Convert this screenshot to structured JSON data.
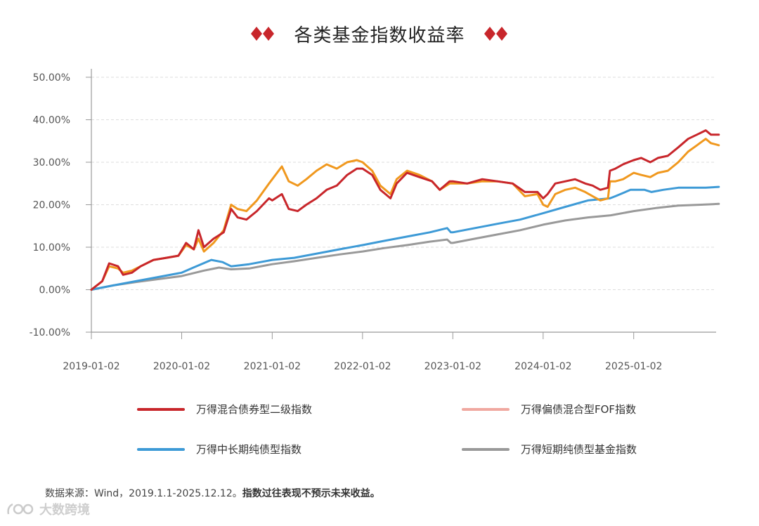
{
  "title": "各类基金指数收益率",
  "colors": {
    "diamond": "#c8262b",
    "axis": "#999999",
    "grid": "#dddddd",
    "tick_text": "#555555"
  },
  "chart_data": {
    "type": "line",
    "title": "各类基金指数收益率",
    "xlabel": "",
    "ylabel": "",
    "x_ticks": [
      "2019-01-02",
      "2020-01-02",
      "2021-01-02",
      "2022-01-02",
      "2023-01-02",
      "2024-01-02",
      "2025-01-02"
    ],
    "y_ticks": [
      "50.00%",
      "40.00%",
      "30.00%",
      "20.00%",
      "10.00%",
      "0.00%",
      "-10.00%"
    ],
    "ylim": [
      -10,
      50
    ],
    "x_range": [
      "2019-01-02",
      "2025-12-12"
    ],
    "grid": "horizontal dashed",
    "legend_position": "bottom",
    "series": [
      {
        "name": "万得混合债券型二级指数",
        "color": "#c8262b",
        "points": [
          [
            "2019-01-02",
            0
          ],
          [
            "2019-02-15",
            2
          ],
          [
            "2019-03-15",
            6.2
          ],
          [
            "2019-04-20",
            5.5
          ],
          [
            "2019-05-10",
            3.5
          ],
          [
            "2019-06-15",
            4
          ],
          [
            "2019-07-20",
            5.5
          ],
          [
            "2019-09-10",
            7
          ],
          [
            "2019-11-01",
            7.5
          ],
          [
            "2019-12-20",
            8
          ],
          [
            "2020-01-20",
            11
          ],
          [
            "2020-02-20",
            9.5
          ],
          [
            "2020-03-10",
            14
          ],
          [
            "2020-04-01",
            10
          ],
          [
            "2020-05-10",
            12
          ],
          [
            "2020-06-20",
            13.5
          ],
          [
            "2020-07-20",
            19
          ],
          [
            "2020-08-15",
            17
          ],
          [
            "2020-09-20",
            16.5
          ],
          [
            "2020-11-01",
            18.5
          ],
          [
            "2020-12-20",
            21.5
          ],
          [
            "2021-01-02",
            21
          ],
          [
            "2021-02-10",
            22.5
          ],
          [
            "2021-03-10",
            19
          ],
          [
            "2021-04-15",
            18.5
          ],
          [
            "2021-05-20",
            20
          ],
          [
            "2021-06-30",
            21.5
          ],
          [
            "2021-08-10",
            23.5
          ],
          [
            "2021-09-20",
            24.5
          ],
          [
            "2021-11-01",
            27
          ],
          [
            "2021-12-10",
            28.5
          ],
          [
            "2022-01-02",
            28.5
          ],
          [
            "2022-02-10",
            27
          ],
          [
            "2022-03-15",
            23.5
          ],
          [
            "2022-04-25",
            21.5
          ],
          [
            "2022-05-20",
            25
          ],
          [
            "2022-07-01",
            27.5
          ],
          [
            "2022-08-20",
            26.5
          ],
          [
            "2022-10-10",
            25.5
          ],
          [
            "2022-11-10",
            23.5
          ],
          [
            "2022-12-20",
            25.5
          ],
          [
            "2023-01-02",
            25.5
          ],
          [
            "2023-03-01",
            25
          ],
          [
            "2023-05-01",
            26
          ],
          [
            "2023-07-01",
            25.5
          ],
          [
            "2023-09-01",
            25
          ],
          [
            "2023-10-20",
            23
          ],
          [
            "2023-12-10",
            23
          ],
          [
            "2024-01-02",
            21.5
          ],
          [
            "2024-01-20",
            22.5
          ],
          [
            "2024-02-20",
            25
          ],
          [
            "2024-04-01",
            25.5
          ],
          [
            "2024-05-10",
            26
          ],
          [
            "2024-06-20",
            25
          ],
          [
            "2024-07-20",
            24.5
          ],
          [
            "2024-08-20",
            23.5
          ],
          [
            "2024-09-20",
            24
          ],
          [
            "2024-09-28",
            28
          ],
          [
            "2024-10-20",
            28.5
          ],
          [
            "2024-11-20",
            29.5
          ],
          [
            "2025-01-02",
            30.5
          ],
          [
            "2025-02-01",
            31
          ],
          [
            "2025-03-10",
            30
          ],
          [
            "2025-04-10",
            31
          ],
          [
            "2025-05-20",
            31.5
          ],
          [
            "2025-07-01",
            33.5
          ],
          [
            "2025-08-10",
            35.5
          ],
          [
            "2025-09-15",
            36.5
          ],
          [
            "2025-10-20",
            37.5
          ],
          [
            "2025-11-10",
            36.5
          ],
          [
            "2025-12-12",
            36.5
          ]
        ]
      },
      {
        "name": "万得偏债混合型FOF指数",
        "color": "#f0981e",
        "legend_color": "#f0a8a0",
        "points": [
          [
            "2019-01-02",
            0
          ],
          [
            "2019-02-15",
            2
          ],
          [
            "2019-03-15",
            5.5
          ],
          [
            "2019-04-20",
            5
          ],
          [
            "2019-05-10",
            4
          ],
          [
            "2019-06-15",
            4.5
          ],
          [
            "2019-07-20",
            5.5
          ],
          [
            "2019-09-10",
            7
          ],
          [
            "2019-11-01",
            7.5
          ],
          [
            "2019-12-20",
            8
          ],
          [
            "2020-01-20",
            10.5
          ],
          [
            "2020-02-20",
            9.5
          ],
          [
            "2020-03-10",
            12
          ],
          [
            "2020-04-01",
            9
          ],
          [
            "2020-05-10",
            11
          ],
          [
            "2020-06-20",
            14
          ],
          [
            "2020-07-20",
            20
          ],
          [
            "2020-08-15",
            19
          ],
          [
            "2020-09-20",
            18.5
          ],
          [
            "2020-11-01",
            21
          ],
          [
            "2020-12-20",
            25
          ],
          [
            "2021-01-02",
            26
          ],
          [
            "2021-02-10",
            29
          ],
          [
            "2021-03-10",
            25.5
          ],
          [
            "2021-04-15",
            24.5
          ],
          [
            "2021-05-20",
            26
          ],
          [
            "2021-06-30",
            28
          ],
          [
            "2021-08-10",
            29.5
          ],
          [
            "2021-09-20",
            28.5
          ],
          [
            "2021-11-01",
            30
          ],
          [
            "2021-12-10",
            30.5
          ],
          [
            "2022-01-02",
            30
          ],
          [
            "2022-02-10",
            28
          ],
          [
            "2022-03-15",
            24.5
          ],
          [
            "2022-04-25",
            22.5
          ],
          [
            "2022-05-20",
            26
          ],
          [
            "2022-07-01",
            28
          ],
          [
            "2022-08-20",
            27
          ],
          [
            "2022-10-10",
            25.5
          ],
          [
            "2022-11-10",
            23.5
          ],
          [
            "2022-12-20",
            25
          ],
          [
            "2023-01-02",
            25
          ],
          [
            "2023-03-01",
            25
          ],
          [
            "2023-05-01",
            25.5
          ],
          [
            "2023-07-01",
            25.5
          ],
          [
            "2023-09-01",
            25
          ],
          [
            "2023-10-20",
            22
          ],
          [
            "2023-12-10",
            22.5
          ],
          [
            "2024-01-02",
            20
          ],
          [
            "2024-01-20",
            19.5
          ],
          [
            "2024-02-20",
            22.5
          ],
          [
            "2024-04-01",
            23.5
          ],
          [
            "2024-05-10",
            24
          ],
          [
            "2024-06-20",
            23
          ],
          [
            "2024-07-20",
            22
          ],
          [
            "2024-08-20",
            21
          ],
          [
            "2024-09-20",
            21.5
          ],
          [
            "2024-09-28",
            25.5
          ],
          [
            "2024-10-20",
            25.5
          ],
          [
            "2024-11-20",
            26
          ],
          [
            "2025-01-02",
            27.5
          ],
          [
            "2025-02-01",
            27
          ],
          [
            "2025-03-10",
            26.5
          ],
          [
            "2025-04-10",
            27.5
          ],
          [
            "2025-05-20",
            28
          ],
          [
            "2025-07-01",
            30
          ],
          [
            "2025-08-10",
            32.5
          ],
          [
            "2025-09-15",
            34
          ],
          [
            "2025-10-20",
            35.5
          ],
          [
            "2025-11-10",
            34.5
          ],
          [
            "2025-12-12",
            34
          ]
        ]
      },
      {
        "name": "万得中长期纯债型指数",
        "color": "#3d9ad6",
        "points": [
          [
            "2019-01-02",
            0
          ],
          [
            "2019-04-01",
            1
          ],
          [
            "2019-07-01",
            2
          ],
          [
            "2019-10-01",
            3
          ],
          [
            "2020-01-02",
            4
          ],
          [
            "2020-03-01",
            5.5
          ],
          [
            "2020-05-01",
            7
          ],
          [
            "2020-06-15",
            6.5
          ],
          [
            "2020-07-20",
            5.5
          ],
          [
            "2020-10-01",
            6
          ],
          [
            "2021-01-02",
            7
          ],
          [
            "2021-04-01",
            7.5
          ],
          [
            "2021-07-01",
            8.5
          ],
          [
            "2021-10-01",
            9.5
          ],
          [
            "2022-01-02",
            10.5
          ],
          [
            "2022-04-01",
            11.5
          ],
          [
            "2022-07-01",
            12.5
          ],
          [
            "2022-10-01",
            13.5
          ],
          [
            "2022-12-10",
            14.5
          ],
          [
            "2022-12-25",
            13.5
          ],
          [
            "2023-01-02",
            13.5
          ],
          [
            "2023-04-01",
            14.5
          ],
          [
            "2023-07-01",
            15.5
          ],
          [
            "2023-10-01",
            16.5
          ],
          [
            "2024-01-02",
            18
          ],
          [
            "2024-04-01",
            19.5
          ],
          [
            "2024-07-01",
            21
          ],
          [
            "2024-09-28",
            21.5
          ],
          [
            "2024-10-20",
            22
          ],
          [
            "2024-12-20",
            23.5
          ],
          [
            "2025-01-02",
            23.5
          ],
          [
            "2025-02-15",
            23.5
          ],
          [
            "2025-03-15",
            23
          ],
          [
            "2025-05-01",
            23.5
          ],
          [
            "2025-07-01",
            24
          ],
          [
            "2025-09-01",
            24
          ],
          [
            "2025-10-20",
            24
          ],
          [
            "2025-12-12",
            24.2
          ]
        ]
      },
      {
        "name": "万得短期纯债型基金指数",
        "color": "#999999",
        "points": [
          [
            "2019-01-02",
            0
          ],
          [
            "2019-04-01",
            1
          ],
          [
            "2019-07-01",
            1.8
          ],
          [
            "2019-10-01",
            2.5
          ],
          [
            "2020-01-02",
            3.2
          ],
          [
            "2020-04-01",
            4.5
          ],
          [
            "2020-06-01",
            5.2
          ],
          [
            "2020-07-20",
            4.8
          ],
          [
            "2020-10-01",
            5
          ],
          [
            "2021-01-02",
            6
          ],
          [
            "2021-04-01",
            6.7
          ],
          [
            "2021-07-01",
            7.5
          ],
          [
            "2021-10-01",
            8.3
          ],
          [
            "2022-01-02",
            9
          ],
          [
            "2022-04-01",
            9.8
          ],
          [
            "2022-07-01",
            10.5
          ],
          [
            "2022-10-01",
            11.3
          ],
          [
            "2022-12-10",
            11.8
          ],
          [
            "2022-12-25",
            11
          ],
          [
            "2023-01-02",
            11
          ],
          [
            "2023-04-01",
            12
          ],
          [
            "2023-07-01",
            13
          ],
          [
            "2023-10-01",
            14
          ],
          [
            "2024-01-02",
            15.3
          ],
          [
            "2024-04-01",
            16.3
          ],
          [
            "2024-07-01",
            17
          ],
          [
            "2024-10-01",
            17.5
          ],
          [
            "2025-01-02",
            18.5
          ],
          [
            "2025-04-01",
            19.2
          ],
          [
            "2025-07-01",
            19.8
          ],
          [
            "2025-10-01",
            20
          ],
          [
            "2025-12-12",
            20.2
          ]
        ]
      }
    ]
  },
  "legend": [
    {
      "label": "万得混合债券型二级指数",
      "color": "#c8262b"
    },
    {
      "label": "万得偏债混合型FOF指数",
      "color": "#f0a8a0"
    },
    {
      "label": "万得中长期纯债型指数",
      "color": "#3d9ad6"
    },
    {
      "label": "万得短期纯债型基金指数",
      "color": "#999999"
    }
  ],
  "source": {
    "normal": "数据来源：Wind，2019.1.1-2025.12.12。",
    "bold": "指数过往表现不预示未来收益。"
  },
  "watermark": "大数跨境"
}
